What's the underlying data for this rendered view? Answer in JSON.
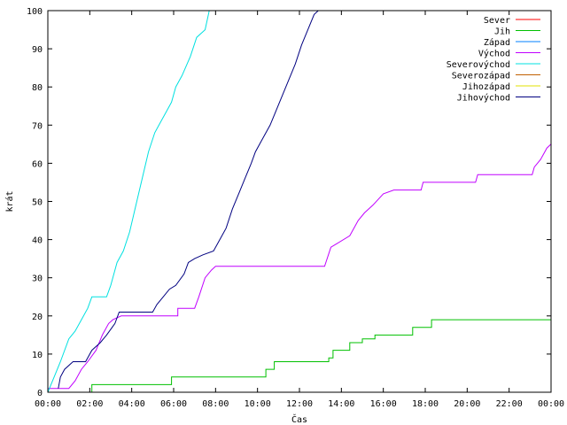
{
  "chart_data": {
    "type": "line",
    "title": "",
    "xlabel": "Čas",
    "ylabel": "krát",
    "xlim": [
      0,
      24
    ],
    "ylim": [
      0,
      100
    ],
    "grid": false,
    "legend_position": "top-right",
    "x_ticks": [
      {
        "value": 0,
        "label": "00:00"
      },
      {
        "value": 2,
        "label": "02:00"
      },
      {
        "value": 4,
        "label": "04:00"
      },
      {
        "value": 6,
        "label": "06:00"
      },
      {
        "value": 8,
        "label": "08:00"
      },
      {
        "value": 10,
        "label": "10:00"
      },
      {
        "value": 12,
        "label": "12:00"
      },
      {
        "value": 14,
        "label": "14:00"
      },
      {
        "value": 16,
        "label": "16:00"
      },
      {
        "value": 18,
        "label": "18:00"
      },
      {
        "value": 20,
        "label": "20:00"
      },
      {
        "value": 22,
        "label": "22:00"
      },
      {
        "value": 24,
        "label": "00:00"
      }
    ],
    "y_ticks": [
      0,
      10,
      20,
      30,
      40,
      50,
      60,
      70,
      80,
      90,
      100
    ],
    "series": [
      {
        "name": "Sever",
        "color": "#ff0000",
        "points": []
      },
      {
        "name": "Jih",
        "color": "#00c000",
        "points": [
          [
            2.1,
            0
          ],
          [
            2.1,
            2
          ],
          [
            5.9,
            2
          ],
          [
            5.9,
            4
          ],
          [
            10.4,
            4
          ],
          [
            10.4,
            6
          ],
          [
            10.8,
            6
          ],
          [
            10.8,
            8
          ],
          [
            13.4,
            8
          ],
          [
            13.4,
            9
          ],
          [
            13.6,
            9
          ],
          [
            13.6,
            11
          ],
          [
            14.4,
            11
          ],
          [
            14.4,
            13
          ],
          [
            15.0,
            13
          ],
          [
            15.0,
            14
          ],
          [
            15.6,
            14
          ],
          [
            15.6,
            15
          ],
          [
            17.4,
            15
          ],
          [
            17.4,
            17
          ],
          [
            18.3,
            17
          ],
          [
            18.3,
            19
          ],
          [
            24.0,
            19
          ]
        ]
      },
      {
        "name": "Západ",
        "color": "#0080ff",
        "points": []
      },
      {
        "name": "Východ",
        "color": "#c000ff",
        "points": [
          [
            0,
            1
          ],
          [
            1.0,
            1
          ],
          [
            1.3,
            3
          ],
          [
            1.6,
            6
          ],
          [
            1.9,
            8
          ],
          [
            2.3,
            11
          ],
          [
            2.6,
            15
          ],
          [
            2.9,
            18
          ],
          [
            3.1,
            19
          ],
          [
            3.5,
            20
          ],
          [
            6.2,
            20
          ],
          [
            6.2,
            22
          ],
          [
            7.0,
            22
          ],
          [
            7.2,
            25
          ],
          [
            7.5,
            30
          ],
          [
            7.8,
            32
          ],
          [
            8.0,
            33
          ],
          [
            13.2,
            33
          ],
          [
            13.5,
            38
          ],
          [
            13.8,
            39
          ],
          [
            14.4,
            41
          ],
          [
            14.8,
            45
          ],
          [
            15.1,
            47
          ],
          [
            15.5,
            49
          ],
          [
            16.0,
            52
          ],
          [
            16.5,
            53
          ],
          [
            17.8,
            53
          ],
          [
            17.9,
            55
          ],
          [
            20.4,
            55
          ],
          [
            20.5,
            57
          ],
          [
            23.1,
            57
          ],
          [
            23.2,
            59
          ],
          [
            23.5,
            61
          ],
          [
            23.8,
            64
          ],
          [
            24.0,
            65
          ]
        ]
      },
      {
        "name": "Severovýchod",
        "color": "#00e0e0",
        "points": [
          [
            0,
            0
          ],
          [
            0.3,
            4
          ],
          [
            0.6,
            8
          ],
          [
            1.0,
            14
          ],
          [
            1.3,
            16
          ],
          [
            1.6,
            19
          ],
          [
            1.9,
            22
          ],
          [
            2.1,
            25
          ],
          [
            2.8,
            25
          ],
          [
            3.0,
            28
          ],
          [
            3.3,
            34
          ],
          [
            3.6,
            37
          ],
          [
            3.9,
            42
          ],
          [
            4.2,
            49
          ],
          [
            4.5,
            56
          ],
          [
            4.8,
            63
          ],
          [
            5.1,
            68
          ],
          [
            5.3,
            70
          ],
          [
            5.6,
            73
          ],
          [
            5.9,
            76
          ],
          [
            6.1,
            80
          ],
          [
            6.4,
            83
          ],
          [
            6.8,
            88
          ],
          [
            7.1,
            93
          ],
          [
            7.5,
            95
          ],
          [
            7.7,
            100
          ]
        ]
      },
      {
        "name": "Severozápad",
        "color": "#c06000",
        "points": []
      },
      {
        "name": "Jihozápad",
        "color": "#e0e000",
        "points": []
      },
      {
        "name": "Jihovýchod",
        "color": "#000080",
        "points": [
          [
            0.5,
            1
          ],
          [
            0.6,
            4
          ],
          [
            0.8,
            6
          ],
          [
            1.2,
            8
          ],
          [
            1.8,
            8
          ],
          [
            2.1,
            11
          ],
          [
            2.5,
            13
          ],
          [
            2.8,
            15
          ],
          [
            3.2,
            18
          ],
          [
            3.4,
            21
          ],
          [
            5.0,
            21
          ],
          [
            5.2,
            23
          ],
          [
            5.5,
            25
          ],
          [
            5.8,
            27
          ],
          [
            6.1,
            28
          ],
          [
            6.5,
            31
          ],
          [
            6.7,
            34
          ],
          [
            7.0,
            35
          ],
          [
            7.4,
            36
          ],
          [
            7.9,
            37
          ],
          [
            8.2,
            40
          ],
          [
            8.5,
            43
          ],
          [
            8.8,
            48
          ],
          [
            9.1,
            52
          ],
          [
            9.4,
            56
          ],
          [
            9.7,
            60
          ],
          [
            9.9,
            63
          ],
          [
            10.2,
            66
          ],
          [
            10.6,
            70
          ],
          [
            10.9,
            74
          ],
          [
            11.2,
            78
          ],
          [
            11.5,
            82
          ],
          [
            11.8,
            86
          ],
          [
            12.1,
            91
          ],
          [
            12.4,
            95
          ],
          [
            12.7,
            99
          ],
          [
            12.9,
            100
          ]
        ]
      }
    ]
  }
}
